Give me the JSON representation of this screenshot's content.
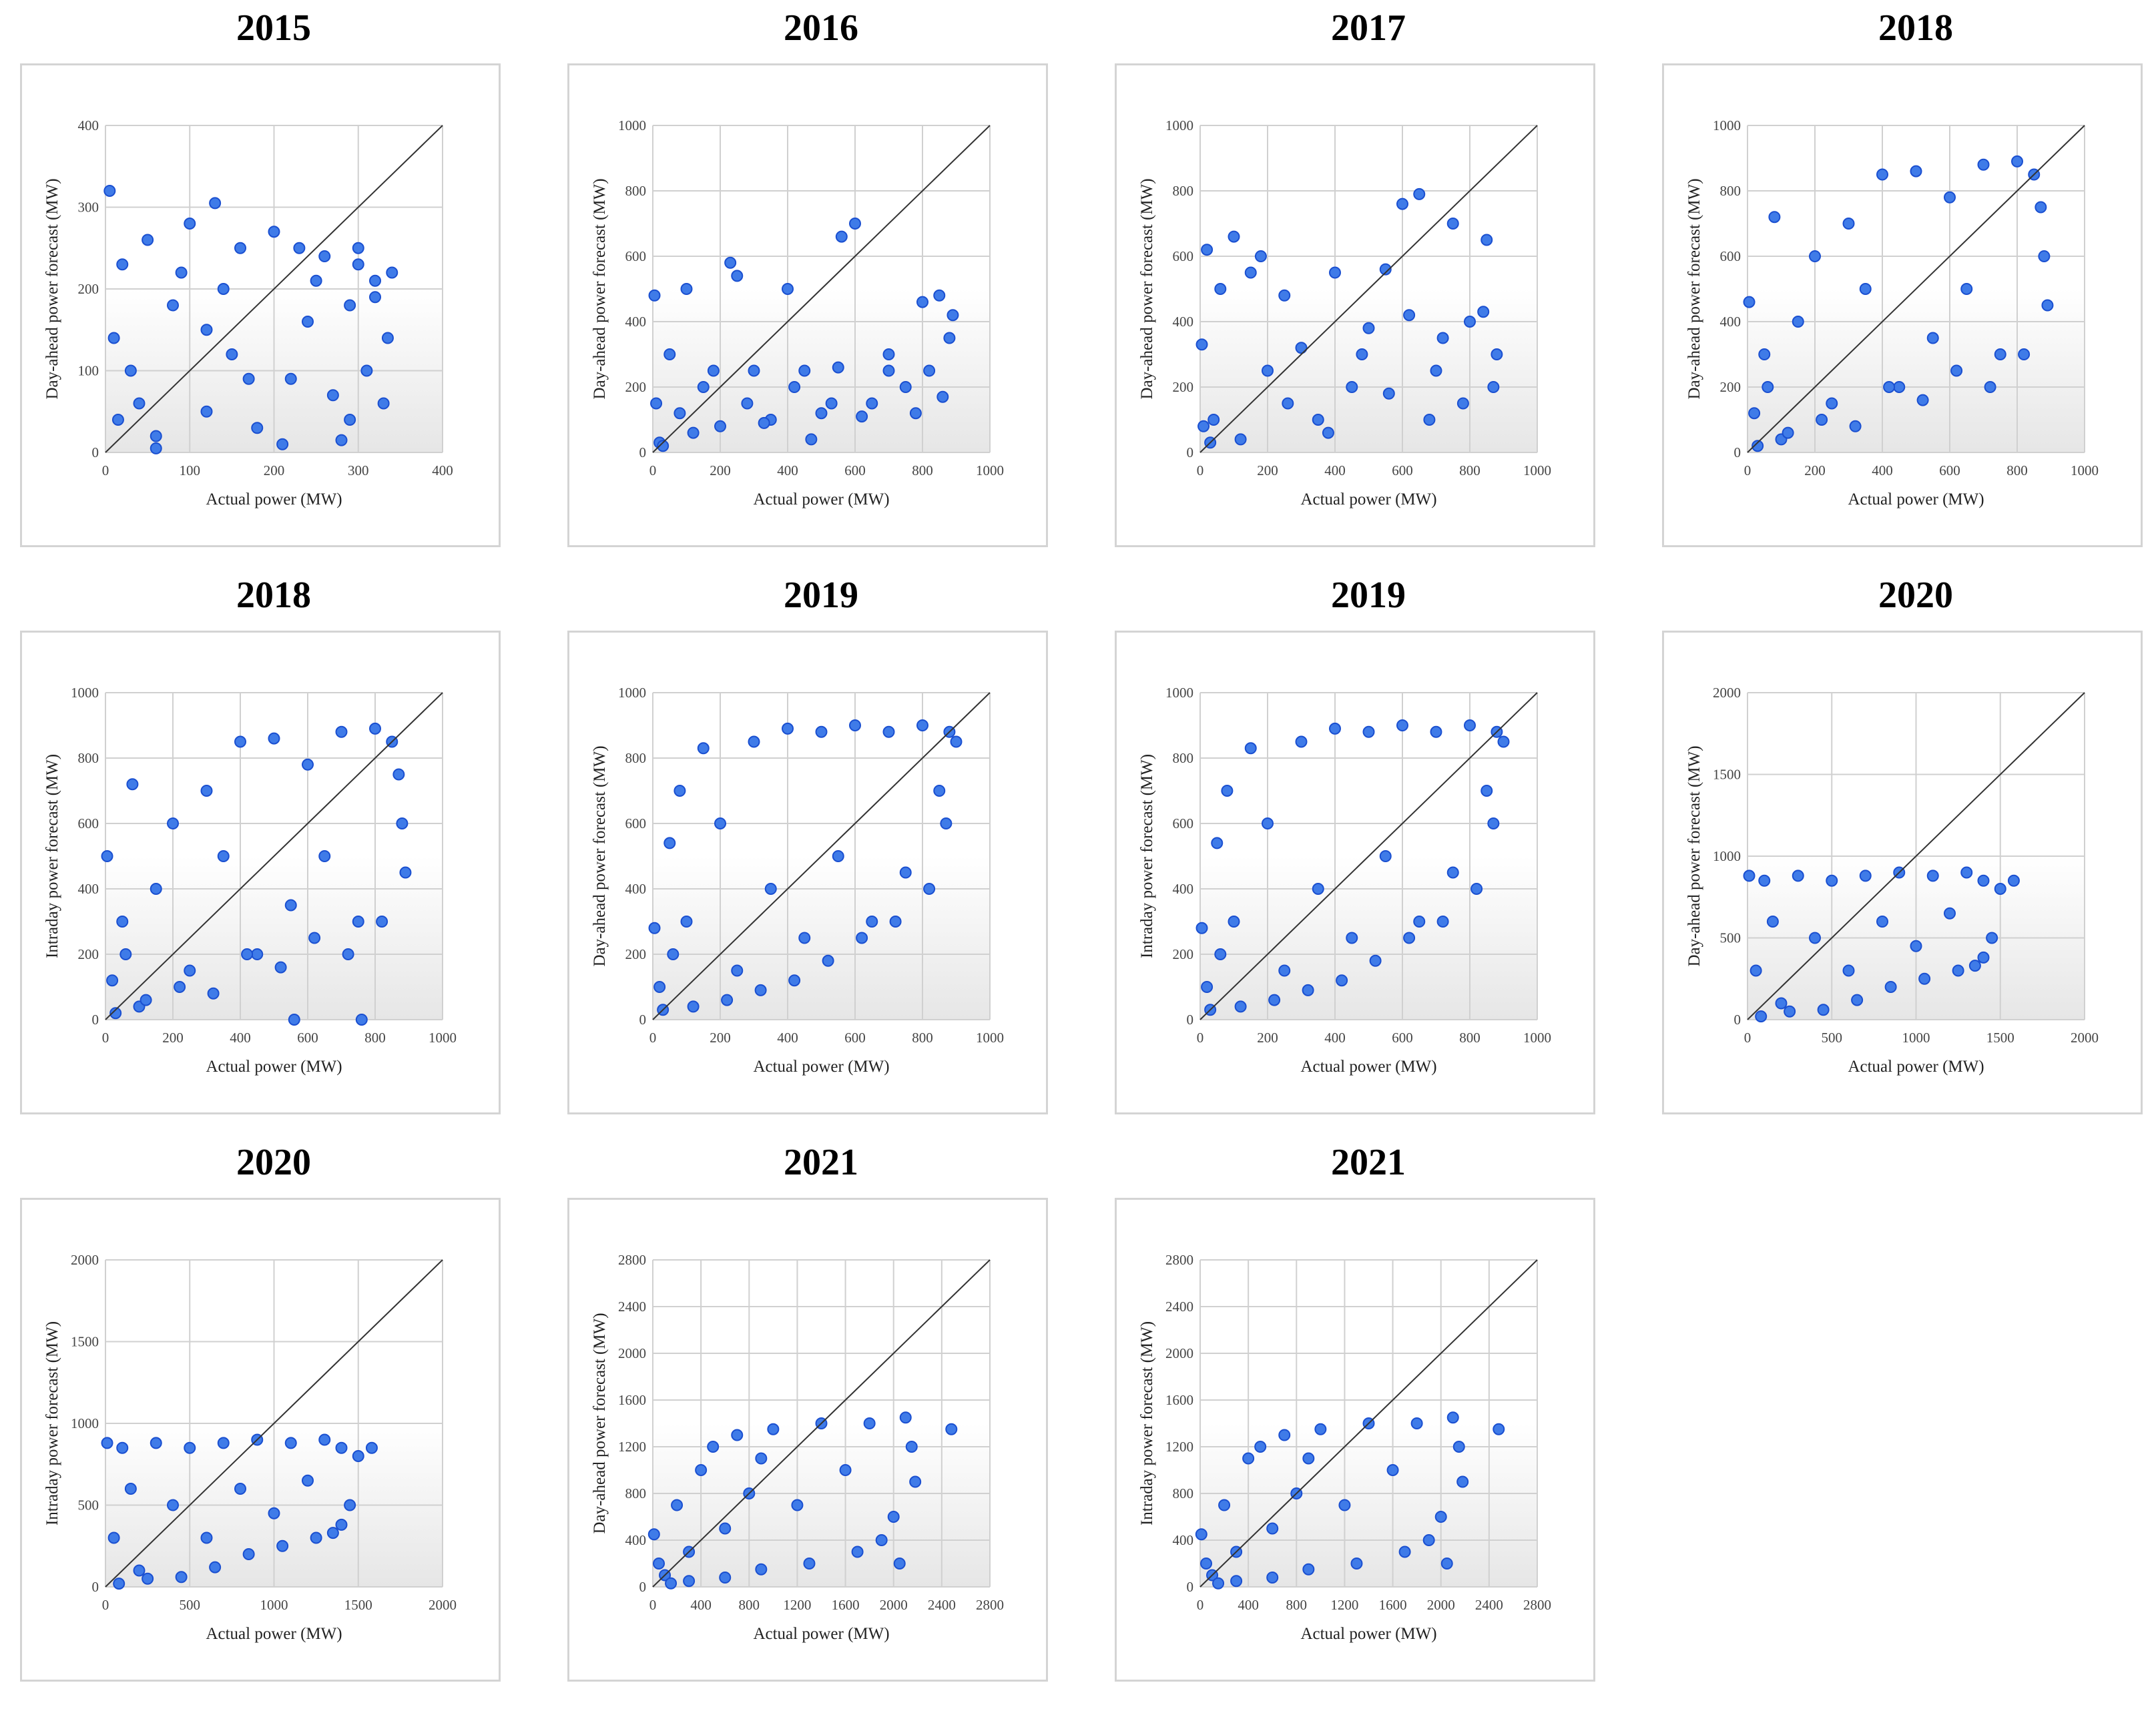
{
  "point_color": "#3f7be8",
  "point_edge": "#1a4fd0",
  "grid_color": "#d0d0d0",
  "charts": [
    {
      "title": "2015",
      "xlabel": "Actual power (MW)",
      "ylabel": "Day-ahead power forecast (MW)",
      "xticks": [
        "0",
        "100",
        "200",
        "300",
        "400"
      ],
      "yticks": [
        "0",
        "100",
        "200",
        "300",
        "400"
      ]
    },
    {
      "title": "2016",
      "xlabel": "Actual power (MW)",
      "ylabel": "Day-ahead power forecast (MW)",
      "xticks": [
        "0",
        "200",
        "400",
        "600",
        "800",
        "1000"
      ],
      "yticks": [
        "0",
        "200",
        "400",
        "600",
        "800",
        "1000"
      ]
    },
    {
      "title": "2017",
      "xlabel": "Actual power (MW)",
      "ylabel": "Day-ahead power forecast (MW)",
      "xticks": [
        "0",
        "200",
        "400",
        "600",
        "800",
        "1000"
      ],
      "yticks": [
        "0",
        "200",
        "400",
        "600",
        "800",
        "1000"
      ]
    },
    {
      "title": "2018",
      "xlabel": "Actual power (MW)",
      "ylabel": "Day-ahead power forecast (MW)",
      "xticks": [
        "0",
        "200",
        "400",
        "600",
        "800",
        "1000"
      ],
      "yticks": [
        "0",
        "200",
        "400",
        "600",
        "800",
        "1000"
      ]
    },
    {
      "title": "2018",
      "xlabel": "Actual power (MW)",
      "ylabel": "Intraday power forecast (MW)",
      "xticks": [
        "0",
        "200",
        "400",
        "600",
        "800",
        "1000"
      ],
      "yticks": [
        "0",
        "200",
        "400",
        "600",
        "800",
        "1000"
      ]
    },
    {
      "title": "2019",
      "xlabel": "Actual power (MW)",
      "ylabel": "Day-ahead power forecast (MW)",
      "xticks": [
        "0",
        "200",
        "400",
        "600",
        "800",
        "1000"
      ],
      "yticks": [
        "0",
        "200",
        "400",
        "600",
        "800",
        "1000"
      ]
    },
    {
      "title": "2019",
      "xlabel": "Actual power (MW)",
      "ylabel": "Intraday power forecast (MW)",
      "xticks": [
        "0",
        "200",
        "400",
        "600",
        "800",
        "1000"
      ],
      "yticks": [
        "0",
        "200",
        "400",
        "600",
        "800",
        "1000"
      ]
    },
    {
      "title": "2020",
      "xlabel": "Actual power (MW)",
      "ylabel": "Day-ahead power forecast (MW)",
      "xticks": [
        "0",
        "500",
        "1000",
        "1500",
        "2000"
      ],
      "yticks": [
        "0",
        "500",
        "1000",
        "1500",
        "2000"
      ]
    },
    {
      "title": "2020",
      "xlabel": "Actual power (MW)",
      "ylabel": "Intraday power forecast (MW)",
      "xticks": [
        "0",
        "500",
        "1000",
        "1500",
        "2000"
      ],
      "yticks": [
        "0",
        "500",
        "1000",
        "1500",
        "2000"
      ]
    },
    {
      "title": "2021",
      "xlabel": "Actual power (MW)",
      "ylabel": "Day-ahead power forecast (MW)",
      "xticks": [
        "0",
        "400",
        "800",
        "1200",
        "1600",
        "2000",
        "2400",
        "2800"
      ],
      "yticks": [
        "0",
        "400",
        "800",
        "1200",
        "1600",
        "2000",
        "2400",
        "2800"
      ]
    },
    {
      "title": "2021",
      "xlabel": "Actual power (MW)",
      "ylabel": "Intraday power forecast (MW)",
      "xticks": [
        "0",
        "400",
        "800",
        "1200",
        "1600",
        "2000",
        "2400",
        "2800"
      ],
      "yticks": [
        "0",
        "400",
        "800",
        "1200",
        "1600",
        "2000",
        "2400",
        "2800"
      ]
    }
  ],
  "chart_data": [
    {
      "type": "scatter",
      "title": "2015",
      "xlabel": "Actual power (MW)",
      "ylabel": "Day-ahead power forecast (MW)",
      "xlim": [
        0,
        400
      ],
      "ylim": [
        0,
        400
      ],
      "grid": true,
      "diagonal": true,
      "x": [
        5,
        20,
        30,
        50,
        60,
        80,
        100,
        120,
        130,
        140,
        150,
        160,
        180,
        200,
        220,
        240,
        250,
        260,
        270,
        280,
        290,
        300,
        310,
        320,
        330,
        340,
        10,
        40,
        90,
        170,
        210,
        230,
        290,
        300,
        320,
        335,
        120,
        60,
        15
      ],
      "y": [
        320,
        230,
        100,
        260,
        20,
        180,
        280,
        50,
        305,
        200,
        120,
        250,
        30,
        270,
        90,
        160,
        210,
        240,
        70,
        15,
        180,
        250,
        100,
        210,
        60,
        220,
        140,
        60,
        220,
        90,
        10,
        250,
        40,
        230,
        190,
        140,
        150,
        5,
        40
      ]
    },
    {
      "type": "scatter",
      "title": "2016",
      "xlabel": "Actual power (MW)",
      "ylabel": "Day-ahead power forecast (MW)",
      "xlim": [
        0,
        1000
      ],
      "ylim": [
        0,
        1000
      ],
      "grid": true,
      "diagonal": true,
      "x": [
        5,
        20,
        50,
        80,
        100,
        150,
        200,
        230,
        250,
        280,
        300,
        350,
        400,
        450,
        500,
        550,
        560,
        600,
        650,
        700,
        750,
        800,
        820,
        850,
        880,
        890,
        10,
        120,
        180,
        330,
        420,
        470,
        530,
        620,
        700,
        780,
        860,
        30
      ],
      "y": [
        480,
        30,
        300,
        120,
        500,
        200,
        80,
        580,
        540,
        150,
        250,
        100,
        500,
        250,
        120,
        260,
        660,
        700,
        150,
        300,
        200,
        460,
        250,
        480,
        350,
        420,
        150,
        60,
        250,
        90,
        200,
        40,
        150,
        110,
        250,
        120,
        170,
        20
      ]
    },
    {
      "type": "scatter",
      "title": "2017",
      "xlabel": "Actual power (MW)",
      "ylabel": "Day-ahead power forecast (MW)",
      "xlim": [
        0,
        1000
      ],
      "ylim": [
        0,
        1000
      ],
      "grid": true,
      "diagonal": true,
      "x": [
        5,
        20,
        40,
        100,
        150,
        200,
        250,
        300,
        350,
        400,
        450,
        500,
        550,
        600,
        650,
        700,
        750,
        800,
        850,
        880,
        30,
        120,
        180,
        260,
        380,
        480,
        560,
        620,
        680,
        720,
        780,
        840,
        870,
        60,
        10
      ],
      "y": [
        330,
        620,
        100,
        660,
        550,
        250,
        480,
        320,
        100,
        550,
        200,
        380,
        560,
        760,
        790,
        250,
        700,
        400,
        650,
        300,
        30,
        40,
        600,
        150,
        60,
        300,
        180,
        420,
        100,
        350,
        150,
        430,
        200,
        500,
        80
      ]
    },
    {
      "type": "scatter",
      "title": "2018",
      "xlabel": "Actual power (MW)",
      "ylabel": "Day-ahead power forecast (MW)",
      "xlim": [
        0,
        1000
      ],
      "ylim": [
        0,
        1000
      ],
      "grid": true,
      "diagonal": true,
      "x": [
        5,
        20,
        50,
        80,
        100,
        150,
        200,
        250,
        300,
        350,
        400,
        450,
        500,
        550,
        600,
        650,
        700,
        750,
        800,
        850,
        880,
        890,
        30,
        120,
        220,
        320,
        420,
        520,
        620,
        720,
        820,
        870,
        60
      ],
      "y": [
        460,
        120,
        300,
        720,
        40,
        400,
        600,
        150,
        700,
        500,
        850,
        200,
        860,
        350,
        780,
        500,
        880,
        300,
        890,
        850,
        600,
        450,
        20,
        60,
        100,
        80,
        200,
        160,
        250,
        200,
        300,
        750,
        200
      ]
    },
    {
      "type": "scatter",
      "title": "2018",
      "xlabel": "Actual power (MW)",
      "ylabel": "Intraday power forecast (MW)",
      "xlim": [
        0,
        1000
      ],
      "ylim": [
        0,
        1000
      ],
      "grid": true,
      "diagonal": true,
      "x": [
        5,
        20,
        50,
        80,
        100,
        150,
        200,
        250,
        300,
        350,
        400,
        450,
        500,
        550,
        600,
        650,
        700,
        750,
        800,
        850,
        880,
        890,
        30,
        120,
        220,
        320,
        420,
        520,
        620,
        720,
        820,
        870,
        60,
        560,
        760
      ],
      "y": [
        500,
        120,
        300,
        720,
        40,
        400,
        600,
        150,
        700,
        500,
        850,
        200,
        860,
        350,
        780,
        500,
        880,
        300,
        890,
        850,
        600,
        450,
        20,
        60,
        100,
        80,
        200,
        160,
        250,
        200,
        300,
        750,
        200,
        0,
        0
      ]
    },
    {
      "type": "scatter",
      "title": "2019",
      "xlabel": "Actual power (MW)",
      "ylabel": "Day-ahead power forecast (MW)",
      "xlim": [
        0,
        1000
      ],
      "ylim": [
        0,
        1000
      ],
      "grid": true,
      "diagonal": true,
      "x": [
        5,
        20,
        50,
        80,
        100,
        150,
        200,
        250,
        300,
        350,
        400,
        450,
        500,
        550,
        600,
        650,
        700,
        750,
        800,
        850,
        880,
        900,
        30,
        120,
        220,
        320,
        420,
        520,
        620,
        720,
        820,
        870,
        60
      ],
      "y": [
        280,
        100,
        540,
        700,
        300,
        830,
        600,
        150,
        850,
        400,
        890,
        250,
        880,
        500,
        900,
        300,
        880,
        450,
        900,
        700,
        880,
        850,
        30,
        40,
        60,
        90,
        120,
        180,
        250,
        300,
        400,
        600,
        200
      ]
    },
    {
      "type": "scatter",
      "title": "2019",
      "xlabel": "Actual power (MW)",
      "ylabel": "Intraday power forecast (MW)",
      "xlim": [
        0,
        1000
      ],
      "ylim": [
        0,
        1000
      ],
      "grid": true,
      "diagonal": true,
      "x": [
        5,
        20,
        50,
        80,
        100,
        150,
        200,
        250,
        300,
        350,
        400,
        450,
        500,
        550,
        600,
        650,
        700,
        750,
        800,
        850,
        880,
        900,
        30,
        120,
        220,
        320,
        420,
        520,
        620,
        720,
        820,
        870,
        60
      ],
      "y": [
        280,
        100,
        540,
        700,
        300,
        830,
        600,
        150,
        850,
        400,
        890,
        250,
        880,
        500,
        900,
        300,
        880,
        450,
        900,
        700,
        880,
        850,
        30,
        40,
        60,
        90,
        120,
        180,
        250,
        300,
        400,
        600,
        200
      ]
    },
    {
      "type": "scatter",
      "title": "2020",
      "xlabel": "Actual power (MW)",
      "ylabel": "Day-ahead power forecast (MW)",
      "xlim": [
        0,
        2000
      ],
      "ylim": [
        0,
        2000
      ],
      "grid": true,
      "diagonal": true,
      "x": [
        10,
        50,
        100,
        150,
        200,
        300,
        400,
        500,
        600,
        700,
        800,
        900,
        1000,
        1100,
        1200,
        1300,
        1400,
        1500,
        1580,
        250,
        450,
        650,
        850,
        1050,
        1250,
        1450,
        1400,
        1350,
        80
      ],
      "y": [
        880,
        300,
        850,
        600,
        100,
        880,
        500,
        850,
        300,
        880,
        600,
        900,
        450,
        880,
        650,
        900,
        850,
        800,
        850,
        50,
        60,
        120,
        200,
        250,
        300,
        500,
        380,
        330,
        20
      ]
    },
    {
      "type": "scatter",
      "title": "2020",
      "xlabel": "Actual power (MW)",
      "ylabel": "Intraday power forecast (MW)",
      "xlim": [
        0,
        2000
      ],
      "ylim": [
        0,
        2000
      ],
      "grid": true,
      "diagonal": true,
      "x": [
        10,
        50,
        100,
        150,
        200,
        300,
        400,
        500,
        600,
        700,
        800,
        900,
        1000,
        1100,
        1200,
        1300,
        1400,
        1500,
        1580,
        250,
        450,
        650,
        850,
        1050,
        1250,
        1450,
        1400,
        1350,
        80
      ],
      "y": [
        880,
        300,
        850,
        600,
        100,
        880,
        500,
        850,
        300,
        880,
        600,
        900,
        450,
        880,
        650,
        900,
        850,
        800,
        850,
        50,
        60,
        120,
        200,
        250,
        300,
        500,
        380,
        330,
        20
      ]
    },
    {
      "type": "scatter",
      "title": "2021",
      "xlabel": "Actual power (MW)",
      "ylabel": "Day-ahead power forecast (MW)",
      "xlim": [
        0,
        2800
      ],
      "ylim": [
        0,
        2800
      ],
      "grid": true,
      "diagonal": true,
      "x": [
        10,
        100,
        200,
        300,
        400,
        500,
        600,
        700,
        800,
        900,
        1000,
        1200,
        1400,
        1600,
        1800,
        2000,
        2100,
        2150,
        2180,
        2480,
        300,
        600,
        900,
        1300,
        1700,
        1900,
        2050,
        150,
        50
      ],
      "y": [
        450,
        100,
        700,
        300,
        1000,
        1200,
        500,
        1300,
        800,
        1100,
        1350,
        700,
        1400,
        1000,
        1400,
        600,
        1450,
        1200,
        900,
        1350,
        50,
        80,
        150,
        200,
        300,
        400,
        200,
        30,
        200
      ]
    },
    {
      "type": "scatter",
      "title": "2021",
      "xlabel": "Actual power (MW)",
      "ylabel": "Intraday power forecast (MW)",
      "xlim": [
        0,
        2800
      ],
      "ylim": [
        0,
        2800
      ],
      "grid": true,
      "diagonal": true,
      "x": [
        10,
        100,
        200,
        300,
        400,
        500,
        600,
        700,
        800,
        900,
        1000,
        1200,
        1400,
        1600,
        1800,
        2000,
        2100,
        2150,
        2180,
        2480,
        300,
        600,
        900,
        1300,
        1700,
        1900,
        2050,
        150,
        50
      ],
      "y": [
        450,
        100,
        700,
        300,
        1100,
        1200,
        500,
        1300,
        800,
        1100,
        1350,
        700,
        1400,
        1000,
        1400,
        600,
        1450,
        1200,
        900,
        1350,
        50,
        80,
        150,
        200,
        300,
        400,
        200,
        30,
        200
      ]
    }
  ]
}
